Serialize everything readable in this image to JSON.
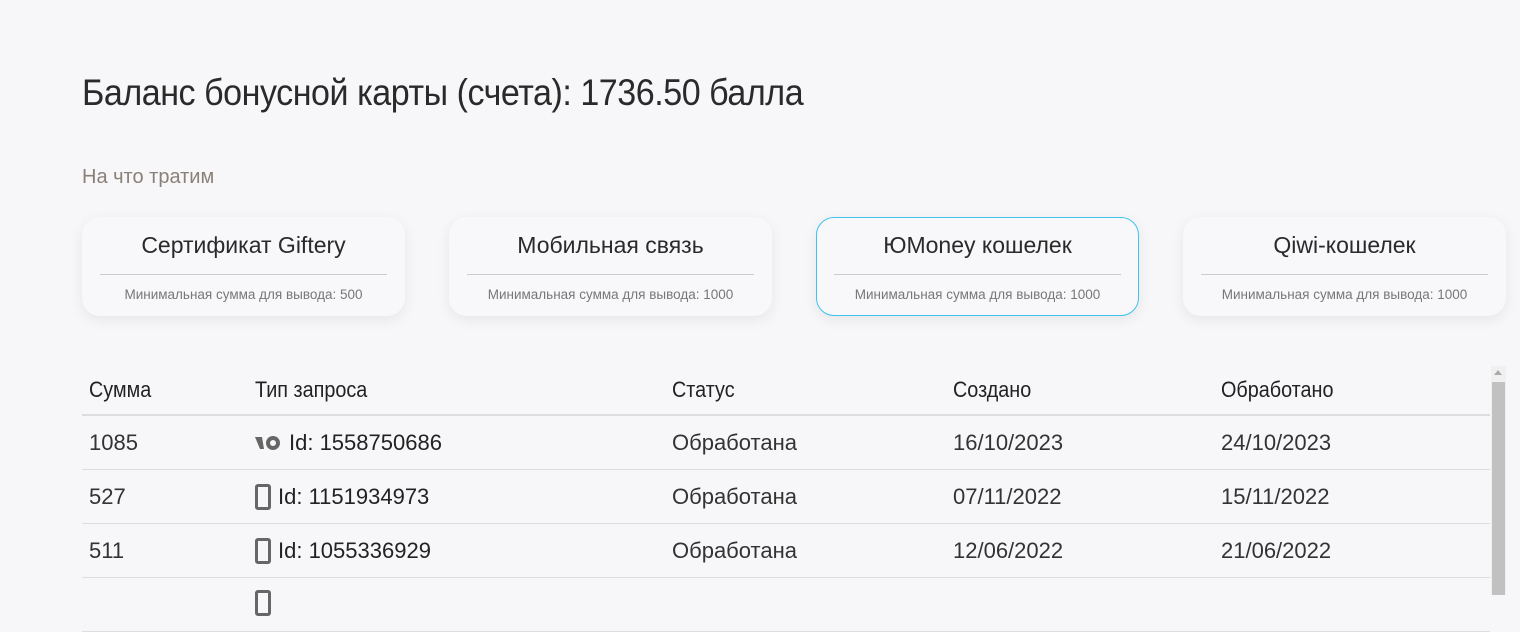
{
  "header": {
    "title": "Баланс бонусной карты (счета): 1736.50 балла",
    "subtitle": "На что тратим"
  },
  "cards": [
    {
      "name": "Сертификат Giftery",
      "min": "Минимальная сумма для вывода: 500"
    },
    {
      "name": "Мобильная связь",
      "min": "Минимальная сумма для вывода: 1000"
    },
    {
      "name": "ЮMoney кошелек",
      "min": "Минимальная сумма для вывода: 1000",
      "selected": true
    },
    {
      "name": "Qiwi-кошелек",
      "min": "Минимальная сумма для вывода: 1000"
    }
  ],
  "table": {
    "columns": [
      "Сумма",
      "Тип запроса",
      "Статус",
      "Создано",
      "Обработано"
    ],
    "rows": [
      {
        "amount": "1085",
        "type_icon": "yoomoney-icon",
        "type": "Id: 1558750686",
        "status": "Обработана",
        "created": "16/10/2023",
        "processed": "24/10/2023"
      },
      {
        "amount": "527",
        "type_icon": "phone-icon",
        "type": "Id: 1151934973",
        "status": "Обработана",
        "created": "07/11/2022",
        "processed": "15/11/2022"
      },
      {
        "amount": "511",
        "type_icon": "phone-icon",
        "type": "Id: 1055336929",
        "status": "Обработана",
        "created": "12/06/2022",
        "processed": "21/06/2022"
      }
    ]
  },
  "colors": {
    "accent": "#3cc3f0",
    "background": "#f7f7f9"
  }
}
